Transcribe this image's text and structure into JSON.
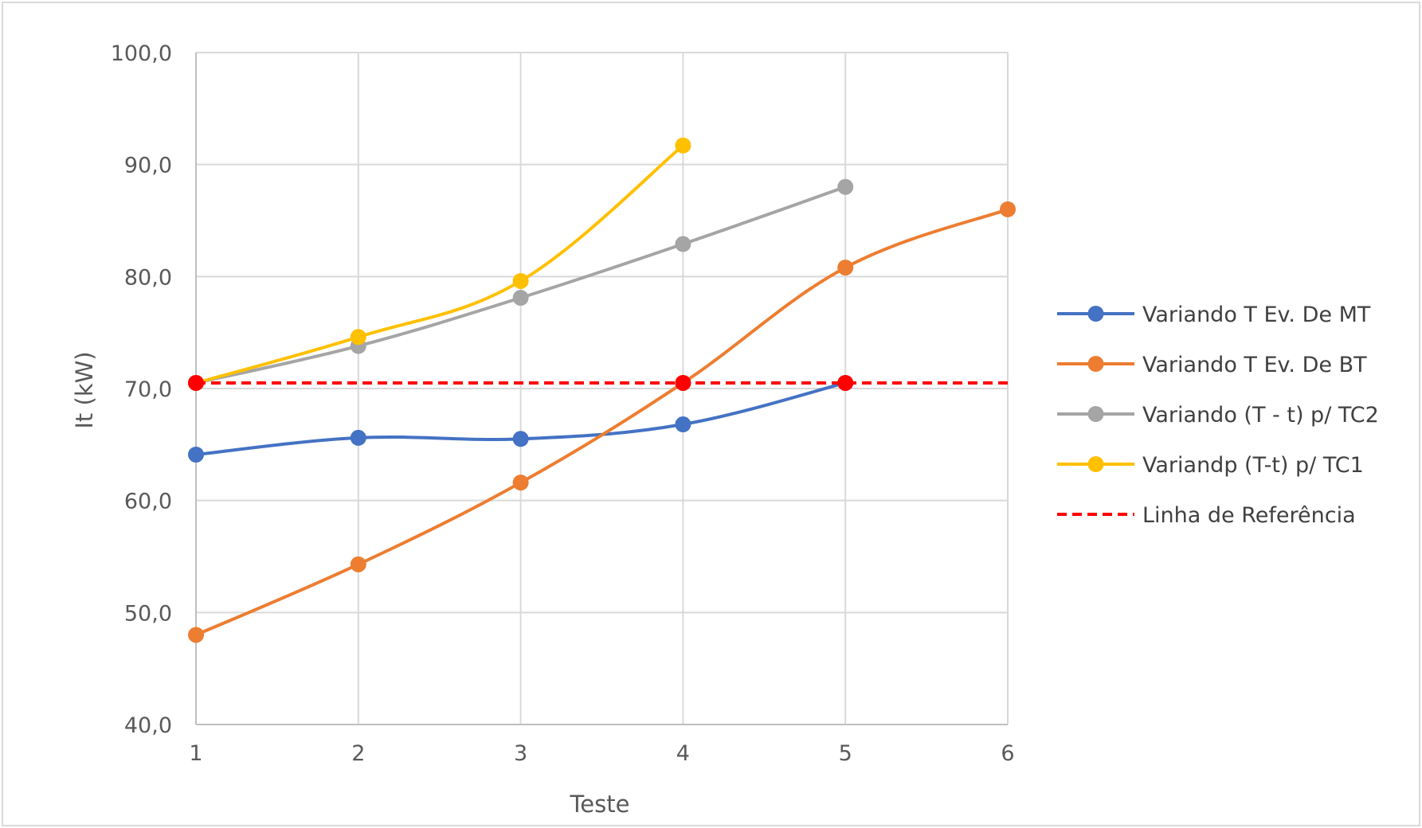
{
  "chart_data": {
    "type": "line",
    "title": "",
    "xlabel": "Teste",
    "ylabel": "It (kW)",
    "x": [
      1,
      2,
      3,
      4,
      5,
      6
    ],
    "xlim": [
      1,
      6
    ],
    "ylim": [
      40,
      100
    ],
    "yticks": [
      40,
      50,
      60,
      70,
      80,
      90,
      100
    ],
    "ytick_labels": [
      "40,0",
      "50,0",
      "60,0",
      "70,0",
      "80,0",
      "90,0",
      "100,0"
    ],
    "xtick_labels": [
      "1",
      "2",
      "3",
      "4",
      "5",
      "6"
    ],
    "grid": true,
    "legend_position": "right",
    "series": [
      {
        "name": "Variando T Ev. De MT",
        "color": "#4472C4",
        "style": "solid",
        "markers": true,
        "x": [
          1,
          2,
          3,
          4,
          5
        ],
        "values": [
          64.1,
          65.6,
          65.5,
          66.8,
          70.5
        ]
      },
      {
        "name": "Variando T Ev. De BT",
        "color": "#ED7D31",
        "style": "solid",
        "markers": true,
        "x": [
          1,
          2,
          3,
          4,
          5,
          6
        ],
        "values": [
          48.0,
          54.3,
          61.6,
          70.5,
          80.8,
          86.0
        ]
      },
      {
        "name": "Variando (T - t) p/ TC2",
        "color": "#A5A5A5",
        "style": "solid",
        "markers": true,
        "x": [
          1,
          2,
          3,
          4,
          5
        ],
        "values": [
          70.5,
          73.8,
          78.1,
          82.9,
          88.0
        ]
      },
      {
        "name": "Variandp (T-t) p/ TC1",
        "color": "#FFC000",
        "style": "solid",
        "markers": true,
        "x": [
          1,
          2,
          3,
          4
        ],
        "values": [
          70.5,
          74.6,
          79.6,
          91.7
        ]
      },
      {
        "name": "Linha de Referência",
        "color": "#FF0000",
        "style": "dashed",
        "markers": false,
        "x": [
          1,
          6
        ],
        "values": [
          70.5,
          70.5
        ]
      }
    ],
    "reference_markers": {
      "color": "#FF0000",
      "x": [
        1,
        4,
        5
      ],
      "values": [
        70.5,
        70.5,
        70.5
      ]
    }
  }
}
